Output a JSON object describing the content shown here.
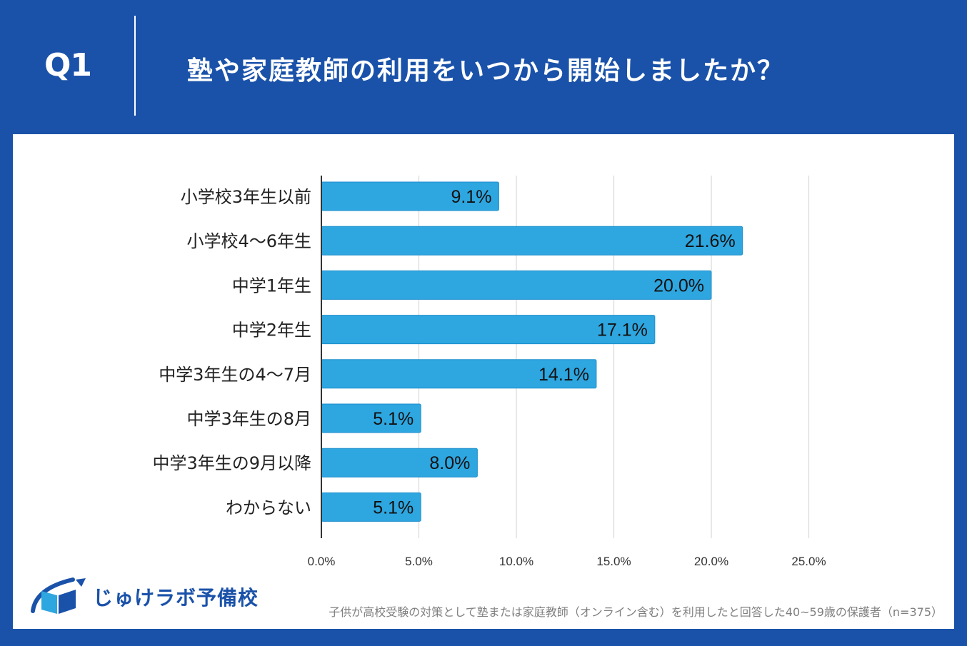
{
  "header": {
    "question": "Q1",
    "title": "塾や家庭教師の利用をいつから開始しましたか？"
  },
  "colors": {
    "background": "#1a52a9",
    "bar": "#2ea6e0",
    "bar_stroke": "#1f8fcc",
    "grid": "#d9d9d9",
    "axis": "#333333"
  },
  "chart_data": {
    "type": "bar",
    "orientation": "horizontal",
    "title": "塾や家庭教師の利用をいつから開始しましたか？",
    "categories": [
      "小学校3年生以前",
      "小学校4〜6年生",
      "中学1年生",
      "中学2年生",
      "中学3年生の4〜7月",
      "中学3年生の8月",
      "中学3年生の9月以降",
      "わからない"
    ],
    "values": [
      9.1,
      21.6,
      20.0,
      17.1,
      14.1,
      5.1,
      8.0,
      5.1
    ],
    "value_labels": [
      "9.1%",
      "21.6%",
      "20.0%",
      "17.1%",
      "14.1%",
      "5.1%",
      "8.0%",
      "5.1%"
    ],
    "xlim": [
      0,
      25
    ],
    "ticks": [
      0,
      5,
      10,
      15,
      20,
      25
    ],
    "tick_labels": [
      "0.0%",
      "5.0%",
      "10.0%",
      "15.0%",
      "20.0%",
      "25.0%"
    ],
    "xlabel": "",
    "ylabel": "",
    "grid": true
  },
  "logo": {
    "text": "じゅけラボ予備校"
  },
  "footnote": "子供が高校受験の対策として塾または家庭教師（オンライン含む）を利用したと回答した40~59歳の保護者（n=375）"
}
